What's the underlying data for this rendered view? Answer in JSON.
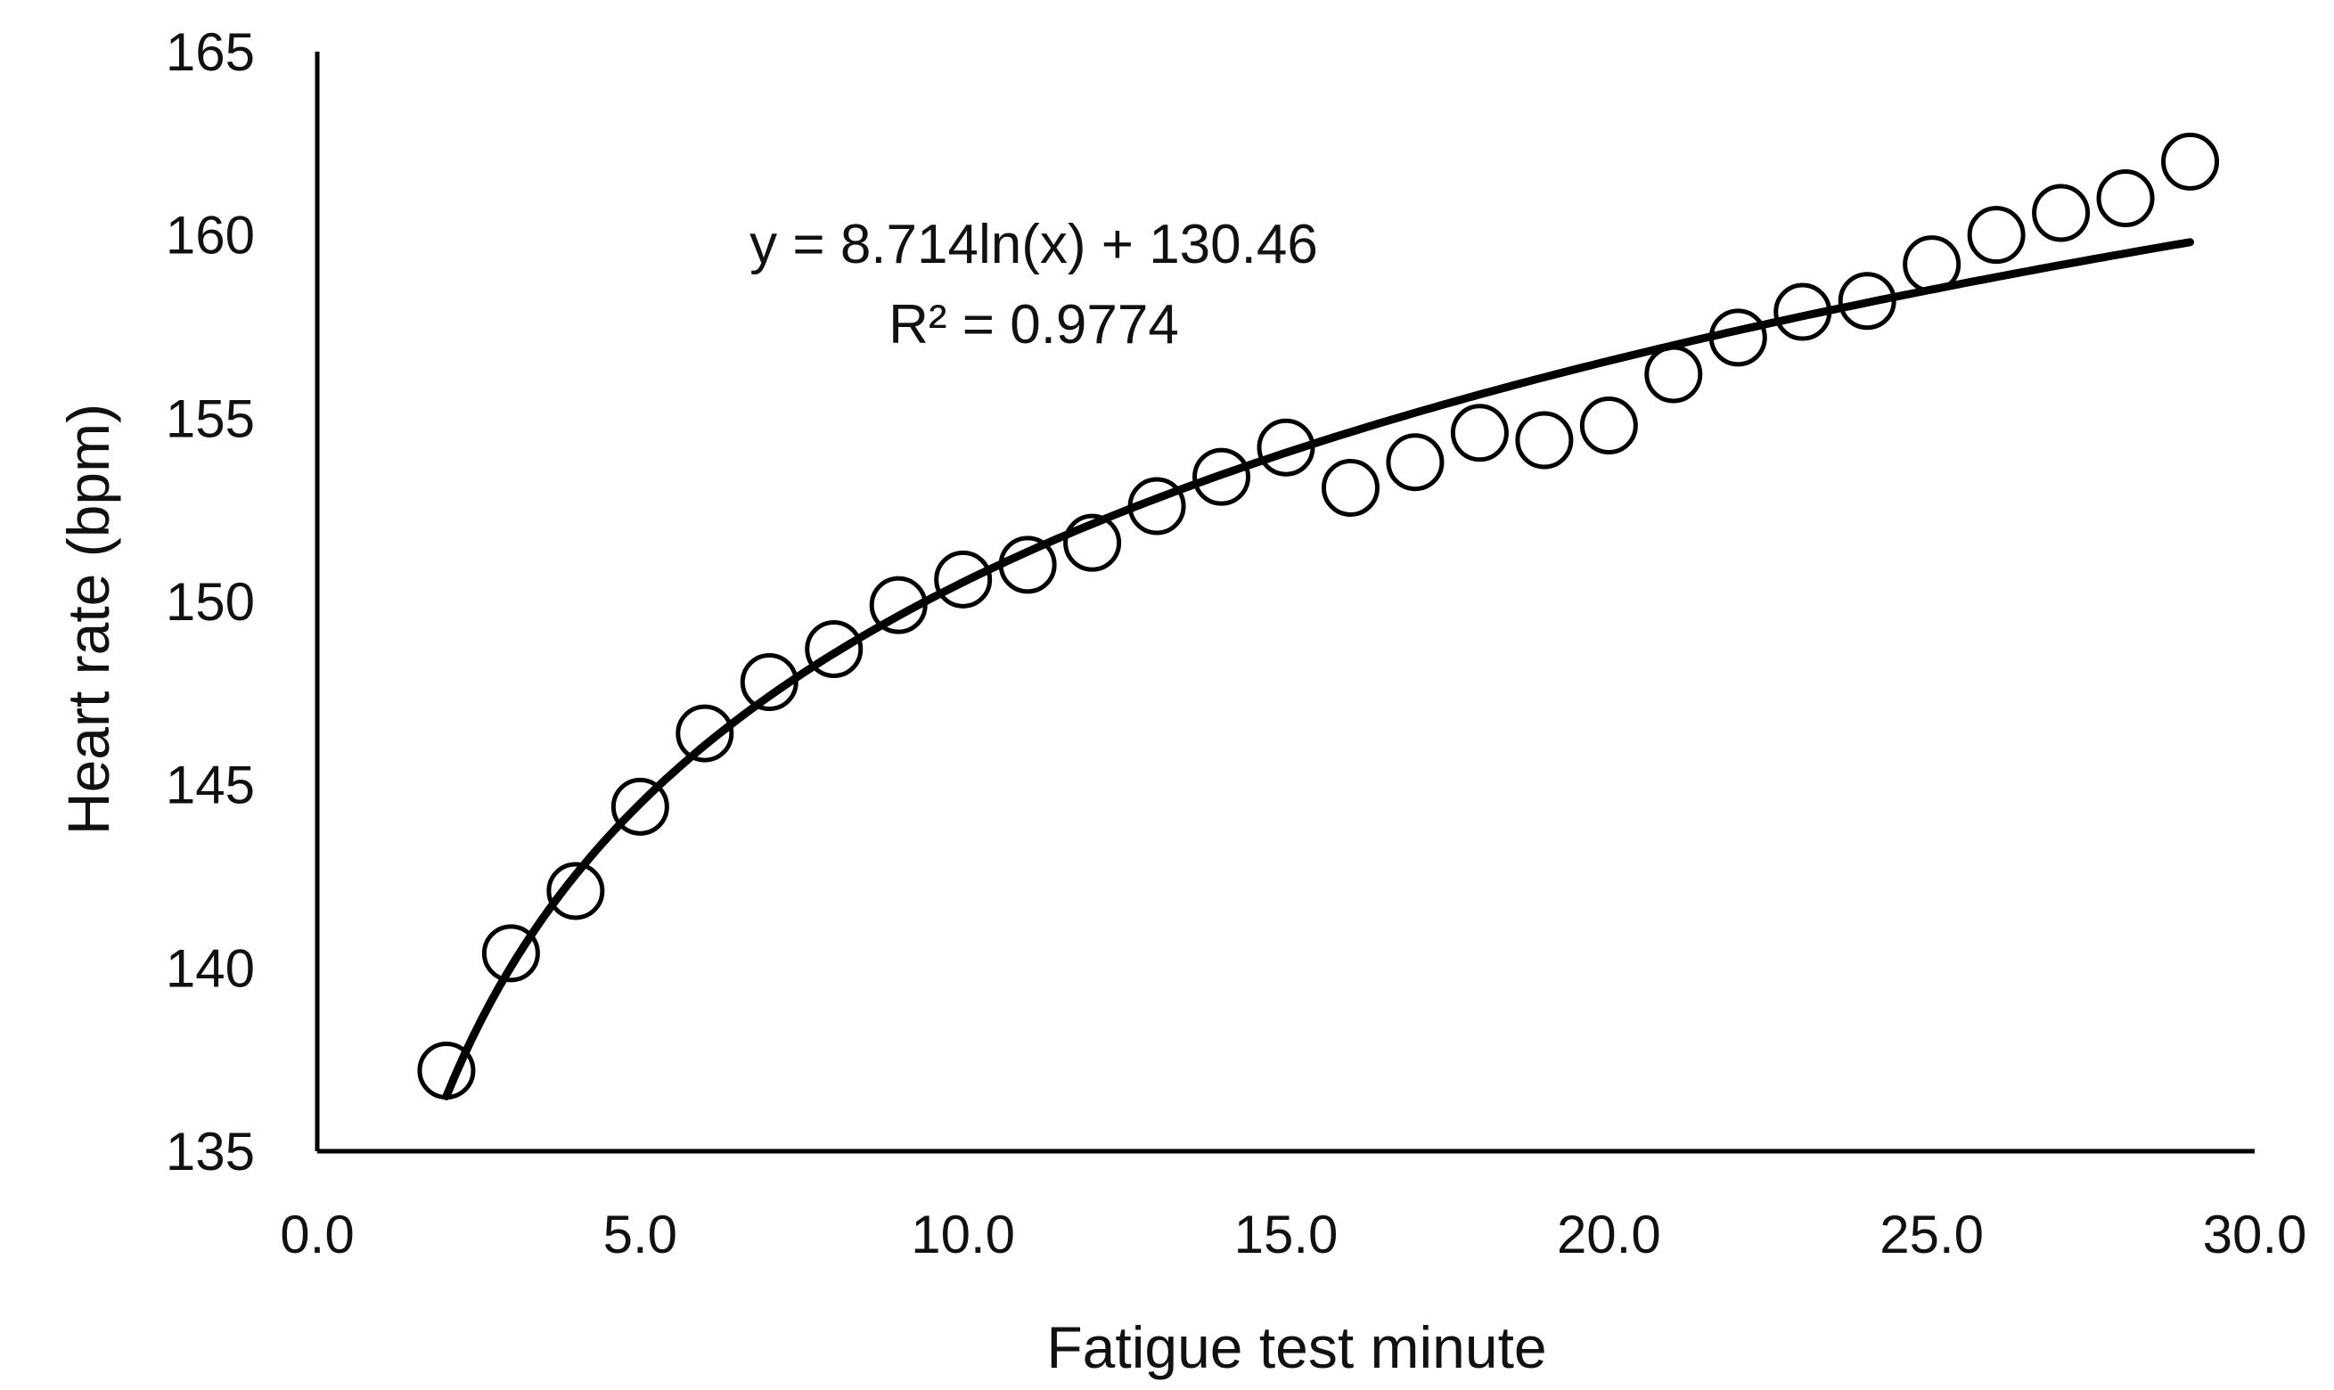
{
  "chart_data": {
    "type": "scatter",
    "xlabel": "Fatigue test minute",
    "ylabel": "Heart rate (bpm)",
    "xlim": [
      0,
      30
    ],
    "ylim": [
      135,
      165
    ],
    "x_ticks": [
      "0.0",
      "5.0",
      "10.0",
      "15.0",
      "20.0",
      "25.0",
      "30.0"
    ],
    "y_ticks": [
      "135",
      "140",
      "145",
      "150",
      "155",
      "160",
      "165"
    ],
    "grid": false,
    "legend": "none",
    "marker": "open-circle",
    "points": [
      {
        "x": 2,
        "y": 137.2
      },
      {
        "x": 3,
        "y": 140.4
      },
      {
        "x": 4,
        "y": 142.1
      },
      {
        "x": 5,
        "y": 144.4
      },
      {
        "x": 6,
        "y": 146.4
      },
      {
        "x": 7,
        "y": 147.8
      },
      {
        "x": 8,
        "y": 148.7
      },
      {
        "x": 9,
        "y": 149.9
      },
      {
        "x": 10,
        "y": 150.6
      },
      {
        "x": 11,
        "y": 151.0
      },
      {
        "x": 12,
        "y": 151.6
      },
      {
        "x": 13,
        "y": 152.6
      },
      {
        "x": 14,
        "y": 153.4
      },
      {
        "x": 15,
        "y": 154.2
      },
      {
        "x": 16,
        "y": 153.1
      },
      {
        "x": 17,
        "y": 153.8
      },
      {
        "x": 18,
        "y": 154.6
      },
      {
        "x": 19,
        "y": 154.4
      },
      {
        "x": 20,
        "y": 154.8
      },
      {
        "x": 21,
        "y": 156.2
      },
      {
        "x": 22,
        "y": 157.2
      },
      {
        "x": 23,
        "y": 157.9
      },
      {
        "x": 24,
        "y": 158.2
      },
      {
        "x": 25,
        "y": 159.2
      },
      {
        "x": 26,
        "y": 160.0
      },
      {
        "x": 27,
        "y": 160.6
      },
      {
        "x": 28,
        "y": 161.0
      },
      {
        "x": 29,
        "y": 162.0
      }
    ],
    "trendline": {
      "type": "logarithmic",
      "a": 8.714,
      "b": 130.46,
      "x_range": [
        2,
        29
      ],
      "equation_label": "y = 8.714ln(x) + 130.46",
      "r2_label": "R² = 0.9774"
    }
  }
}
